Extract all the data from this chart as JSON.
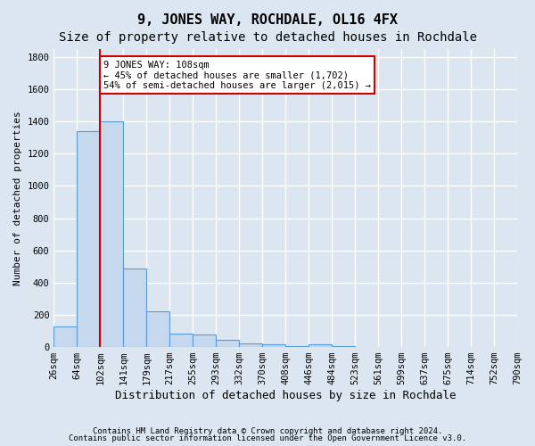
{
  "title": "9, JONES WAY, ROCHDALE, OL16 4FX",
  "subtitle": "Size of property relative to detached houses in Rochdale",
  "xlabel": "Distribution of detached houses by size in Rochdale",
  "ylabel": "Number of detached properties",
  "footer_line1": "Contains HM Land Registry data © Crown copyright and database right 2024.",
  "footer_line2": "Contains public sector information licensed under the Open Government Licence v3.0.",
  "bin_labels": [
    "26sqm",
    "64sqm",
    "102sqm",
    "141sqm",
    "179sqm",
    "217sqm",
    "255sqm",
    "293sqm",
    "332sqm",
    "370sqm",
    "408sqm",
    "446sqm",
    "484sqm",
    "523sqm",
    "561sqm",
    "599sqm",
    "637sqm",
    "675sqm",
    "714sqm",
    "752sqm",
    "790sqm"
  ],
  "bar_values": [
    130,
    1340,
    1400,
    490,
    220,
    85,
    80,
    45,
    25,
    18,
    5,
    18,
    5,
    0,
    0,
    0,
    0,
    0,
    0,
    0
  ],
  "bar_color": "#c5d8ed",
  "bar_edge_color": "#5b9bd5",
  "red_line_x": 2.0,
  "red_line_color": "#cc0000",
  "annotation_text": "9 JONES WAY: 108sqm\n← 45% of detached houses are smaller (1,702)\n54% of semi-detached houses are larger (2,015) →",
  "annotation_box_color": "#ffffff",
  "annotation_box_edge_color": "#cc0000",
  "ylim": [
    0,
    1850
  ],
  "background_color": "#dce6f1",
  "plot_background_color": "#dce6f1",
  "grid_color": "#ffffff",
  "title_fontsize": 11,
  "subtitle_fontsize": 10,
  "ylabel_fontsize": 8,
  "xlabel_fontsize": 9,
  "tick_fontsize": 7.5,
  "yticks": [
    0,
    200,
    400,
    600,
    800,
    1000,
    1200,
    1400,
    1600,
    1800
  ]
}
